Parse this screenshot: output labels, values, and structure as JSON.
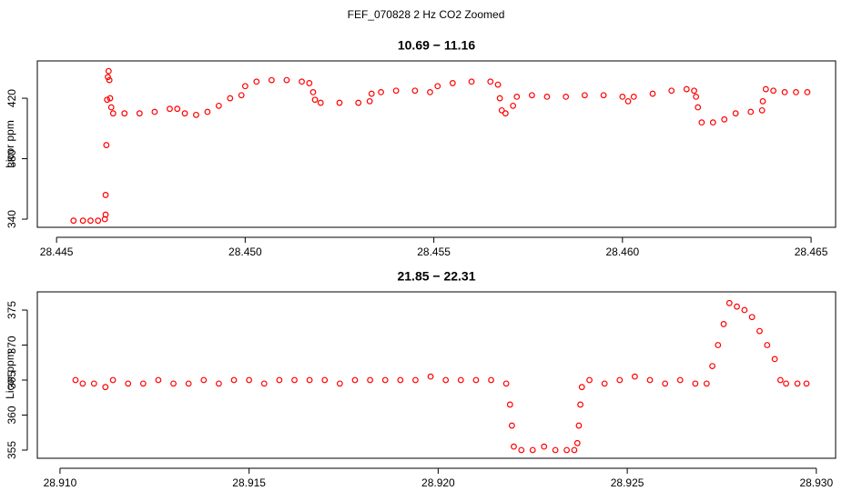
{
  "title": "FEF_070828  2 Hz CO2 Zoomed",
  "chart_data": [
    {
      "type": "scatter",
      "title": "10.69 − 11.16",
      "y_label": "Licor ppm",
      "color": "#ff0000",
      "x": [
        28.44545,
        28.4457,
        28.4459,
        28.4461,
        28.44628,
        28.4463,
        28.4463,
        28.44632,
        28.44634,
        28.44636,
        28.44638,
        28.4464,
        28.44642,
        28.44645,
        28.4465,
        28.4468,
        28.4472,
        28.4476,
        28.448,
        28.4482,
        28.4484,
        28.4487,
        28.449,
        28.4493,
        28.4496,
        28.4499,
        28.45,
        28.4503,
        28.4507,
        28.4511,
        28.4515,
        28.4517,
        28.4518,
        28.45185,
        28.452,
        28.4525,
        28.453,
        28.4533,
        28.45335,
        28.4536,
        28.454,
        28.4545,
        28.4549,
        28.4551,
        28.4555,
        28.456,
        28.4565,
        28.4567,
        28.45675,
        28.4568,
        28.4569,
        28.4571,
        28.4572,
        28.4576,
        28.458,
        28.4585,
        28.459,
        28.4595,
        28.46,
        28.46015,
        28.4603,
        28.4608,
        28.4613,
        28.4617,
        28.4619,
        28.46195,
        28.462,
        28.4621,
        28.4624,
        28.4627,
        28.463,
        28.4634,
        28.4637,
        28.46372,
        28.4638,
        28.464,
        28.4643,
        28.4646,
        28.4649
      ],
      "values": [
        339,
        339,
        339,
        339,
        340,
        343,
        356,
        389,
        419,
        434,
        438,
        432,
        420,
        414,
        410,
        410,
        410,
        411,
        413,
        413,
        410,
        409,
        411,
        415,
        420,
        422,
        428,
        431,
        432,
        432,
        431,
        430,
        424,
        419,
        417,
        417,
        417,
        418,
        423,
        424,
        425,
        425,
        424,
        428,
        430,
        431,
        431,
        429,
        420,
        412,
        410,
        415,
        421,
        422,
        421,
        421,
        422,
        422,
        421,
        418,
        421,
        423,
        425,
        426,
        425,
        421,
        414,
        404,
        404,
        406,
        410,
        411,
        412,
        418,
        426,
        425,
        424,
        424,
        424
      ],
      "xlim": [
        28.44449,
        28.46565
      ],
      "ylim": [
        334.6,
        444.7
      ],
      "xticks": [
        28.445,
        {
          "value": 28.45,
          "label": "28.450"
        },
        28.455,
        {
          "value": 28.46,
          "label": "28.460"
        },
        28.465
      ],
      "yticks": [
        340,
        380,
        420
      ]
    },
    {
      "type": "scatter",
      "title": "21.85 − 22.31",
      "y_label": "Licor ppm",
      "color": "#ff0000",
      "x": [
        28.91041,
        28.9106,
        28.9109,
        28.9112,
        28.9114,
        28.9118,
        28.9122,
        28.9126,
        28.913,
        28.9134,
        28.9138,
        28.9142,
        28.9146,
        28.915,
        28.9154,
        28.9158,
        28.9162,
        28.9166,
        28.917,
        28.9174,
        28.9178,
        28.9182,
        28.9186,
        28.919,
        28.9194,
        28.9198,
        28.9202,
        28.9206,
        28.921,
        28.9214,
        28.9218,
        28.9219,
        28.92195,
        28.922,
        28.9222,
        28.9225,
        28.9228,
        28.9231,
        28.9234,
        28.9236,
        28.92368,
        28.92372,
        28.92376,
        28.9238,
        28.924,
        28.9244,
        28.9248,
        28.9252,
        28.9256,
        28.926,
        28.9264,
        28.9268,
        28.9271,
        28.92725,
        28.9274,
        28.92755,
        28.9277,
        28.9279,
        28.9281,
        28.9283,
        28.9285,
        28.9287,
        28.9289,
        28.92905,
        28.9292,
        28.9295,
        28.92974
      ],
      "values": [
        365,
        364.5,
        364.5,
        364,
        365,
        364.5,
        364.5,
        365,
        364.5,
        364.5,
        365,
        364.5,
        365,
        365,
        364.5,
        365,
        365,
        365,
        365,
        364.5,
        365,
        365,
        365,
        365,
        365,
        365.5,
        365,
        365,
        365,
        365,
        364.5,
        361.5,
        358.5,
        355.5,
        355,
        355,
        355.5,
        355,
        355,
        355,
        356,
        358.5,
        361.5,
        364,
        365,
        364.5,
        365,
        365.5,
        365,
        364.5,
        365,
        364.5,
        364.5,
        367,
        370,
        373,
        376,
        375.5,
        375,
        374,
        372,
        370,
        368,
        365,
        364.5,
        364.5,
        364.5
      ],
      "xlim": [
        28.9094,
        28.93051
      ],
      "ylim": [
        353.83,
        377.6
      ],
      "xticks": [
        {
          "value": 28.91,
          "label": "28.910"
        },
        28.915,
        {
          "value": 28.92,
          "label": "28.920"
        },
        28.925,
        {
          "value": 28.93,
          "label": "28.930"
        }
      ],
      "yticks": [
        355,
        360,
        365,
        370,
        375
      ]
    }
  ]
}
